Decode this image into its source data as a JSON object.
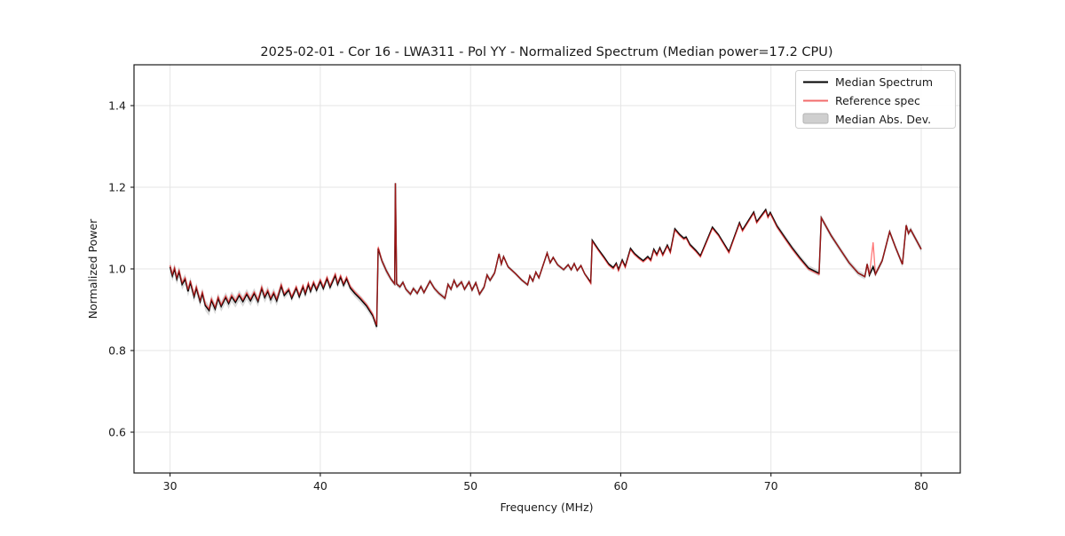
{
  "colors": {
    "median_line": "#000000",
    "reference_line": "#ff2222",
    "reference_opacity": 0.62,
    "mad_band": "#b9b9b9",
    "mad_opacity": 0.55,
    "grid": "#e5e5e5",
    "frame": "#1a1a1a",
    "legend_border": "#d0d0d0",
    "legend_bg": "#ffffff"
  },
  "legend": {
    "items": [
      {
        "label": "Median Spectrum",
        "swatch": "line",
        "color": "#000000"
      },
      {
        "label": "Reference spec",
        "swatch": "line",
        "color": "#f26b6b"
      },
      {
        "label": "Median Abs. Dev.",
        "swatch": "patch",
        "color": "#cfcfcf",
        "border": "#b5b5b5"
      }
    ]
  },
  "chart_data": {
    "type": "line",
    "title": "2025-02-01 - Cor 16 - LWA311 - Pol YY - Normalized Spectrum (Median power=17.2 CPU)",
    "xlabel": "Frequency (MHz)",
    "ylabel": "Normalized Power",
    "xlim": [
      27.6,
      82.6
    ],
    "ylim": [
      0.5,
      1.5
    ],
    "xticks": [
      30,
      40,
      50,
      60,
      70,
      80
    ],
    "xtick_labels": [
      "30",
      "40",
      "50",
      "60",
      "70",
      "80"
    ],
    "yticks": [
      0.6,
      0.8,
      1.0,
      1.2,
      1.4
    ],
    "ytick_labels": [
      "0.6",
      "0.8",
      "1.0",
      "1.2",
      "1.4"
    ],
    "grid": true,
    "legend_position": "upper right",
    "series_names": [
      "Median Spectrum",
      "Reference spec",
      "Median Abs. Dev."
    ],
    "points": [
      [
        30.0,
        1.005
      ],
      [
        30.15,
        0.983
      ],
      [
        30.3,
        1.0
      ],
      [
        30.45,
        0.975
      ],
      [
        30.6,
        0.993
      ],
      [
        30.8,
        0.962
      ],
      [
        31.0,
        0.975
      ],
      [
        31.2,
        0.945
      ],
      [
        31.35,
        0.967
      ],
      [
        31.6,
        0.932
      ],
      [
        31.75,
        0.953
      ],
      [
        32.0,
        0.92
      ],
      [
        32.15,
        0.94
      ],
      [
        32.35,
        0.91
      ],
      [
        32.6,
        0.898
      ],
      [
        32.75,
        0.923
      ],
      [
        33.0,
        0.902
      ],
      [
        33.2,
        0.928
      ],
      [
        33.4,
        0.908
      ],
      [
        33.7,
        0.93
      ],
      [
        33.9,
        0.915
      ],
      [
        34.1,
        0.932
      ],
      [
        34.35,
        0.918
      ],
      [
        34.6,
        0.935
      ],
      [
        34.85,
        0.92
      ],
      [
        35.1,
        0.938
      ],
      [
        35.35,
        0.922
      ],
      [
        35.6,
        0.94
      ],
      [
        35.85,
        0.92
      ],
      [
        36.1,
        0.952
      ],
      [
        36.3,
        0.93
      ],
      [
        36.5,
        0.945
      ],
      [
        36.7,
        0.925
      ],
      [
        36.9,
        0.94
      ],
      [
        37.1,
        0.922
      ],
      [
        37.4,
        0.958
      ],
      [
        37.6,
        0.935
      ],
      [
        37.9,
        0.948
      ],
      [
        38.1,
        0.928
      ],
      [
        38.4,
        0.953
      ],
      [
        38.6,
        0.932
      ],
      [
        38.85,
        0.956
      ],
      [
        39.0,
        0.938
      ],
      [
        39.2,
        0.962
      ],
      [
        39.35,
        0.945
      ],
      [
        39.55,
        0.965
      ],
      [
        39.75,
        0.948
      ],
      [
        40.0,
        0.97
      ],
      [
        40.2,
        0.952
      ],
      [
        40.45,
        0.976
      ],
      [
        40.65,
        0.955
      ],
      [
        41.0,
        0.984
      ],
      [
        41.15,
        0.962
      ],
      [
        41.35,
        0.98
      ],
      [
        41.55,
        0.96
      ],
      [
        41.75,
        0.976
      ],
      [
        42.0,
        0.953
      ],
      [
        42.3,
        0.94
      ],
      [
        42.7,
        0.925
      ],
      [
        43.1,
        0.908
      ],
      [
        43.5,
        0.885
      ],
      [
        43.75,
        0.858
      ],
      [
        43.85,
        1.05
      ],
      [
        44.1,
        1.02
      ],
      [
        44.4,
        0.995
      ],
      [
        44.7,
        0.975
      ],
      [
        44.95,
        0.963
      ],
      [
        45.0,
        1.21
      ],
      [
        45.08,
        0.963
      ],
      [
        45.3,
        0.956
      ],
      [
        45.5,
        0.967
      ],
      [
        45.7,
        0.95
      ],
      [
        46.0,
        0.938
      ],
      [
        46.2,
        0.952
      ],
      [
        46.45,
        0.94
      ],
      [
        46.7,
        0.957
      ],
      [
        46.9,
        0.942
      ],
      [
        47.3,
        0.97
      ],
      [
        47.6,
        0.952
      ],
      [
        47.9,
        0.94
      ],
      [
        48.3,
        0.928
      ],
      [
        48.5,
        0.962
      ],
      [
        48.7,
        0.95
      ],
      [
        48.9,
        0.972
      ],
      [
        49.1,
        0.956
      ],
      [
        49.4,
        0.968
      ],
      [
        49.6,
        0.95
      ],
      [
        49.9,
        0.968
      ],
      [
        50.1,
        0.948
      ],
      [
        50.35,
        0.966
      ],
      [
        50.6,
        0.938
      ],
      [
        50.9,
        0.955
      ],
      [
        51.1,
        0.985
      ],
      [
        51.3,
        0.972
      ],
      [
        51.6,
        0.99
      ],
      [
        51.9,
        1.037
      ],
      [
        52.05,
        1.012
      ],
      [
        52.2,
        1.03
      ],
      [
        52.5,
        1.005
      ],
      [
        53.0,
        0.988
      ],
      [
        53.4,
        0.973
      ],
      [
        53.8,
        0.961
      ],
      [
        53.95,
        0.983
      ],
      [
        54.15,
        0.97
      ],
      [
        54.35,
        0.992
      ],
      [
        54.55,
        0.978
      ],
      [
        55.1,
        1.039
      ],
      [
        55.3,
        1.015
      ],
      [
        55.5,
        1.028
      ],
      [
        55.8,
        1.01
      ],
      [
        56.2,
        0.998
      ],
      [
        56.5,
        1.01
      ],
      [
        56.7,
        0.998
      ],
      [
        56.9,
        1.013
      ],
      [
        57.1,
        0.996
      ],
      [
        57.35,
        1.008
      ],
      [
        57.6,
        0.988
      ],
      [
        58.0,
        0.967
      ],
      [
        58.1,
        1.07
      ],
      [
        58.5,
        1.048
      ],
      [
        58.9,
        1.028
      ],
      [
        59.2,
        1.012
      ],
      [
        59.5,
        1.003
      ],
      [
        59.7,
        1.014
      ],
      [
        59.85,
        0.998
      ],
      [
        60.1,
        1.022
      ],
      [
        60.3,
        1.006
      ],
      [
        60.65,
        1.05
      ],
      [
        60.9,
        1.038
      ],
      [
        61.2,
        1.028
      ],
      [
        61.5,
        1.02
      ],
      [
        61.8,
        1.03
      ],
      [
        62.0,
        1.022
      ],
      [
        62.2,
        1.048
      ],
      [
        62.4,
        1.035
      ],
      [
        62.6,
        1.052
      ],
      [
        62.8,
        1.035
      ],
      [
        63.1,
        1.058
      ],
      [
        63.3,
        1.042
      ],
      [
        63.6,
        1.098
      ],
      [
        63.9,
        1.085
      ],
      [
        64.2,
        1.075
      ],
      [
        64.35,
        1.078
      ],
      [
        64.6,
        1.06
      ],
      [
        65.0,
        1.045
      ],
      [
        65.3,
        1.032
      ],
      [
        66.1,
        1.102
      ],
      [
        66.5,
        1.084
      ],
      [
        67.2,
        1.042
      ],
      [
        67.9,
        1.113
      ],
      [
        68.1,
        1.095
      ],
      [
        68.85,
        1.139
      ],
      [
        69.05,
        1.115
      ],
      [
        69.65,
        1.145
      ],
      [
        69.8,
        1.128
      ],
      [
        69.95,
        1.138
      ],
      [
        70.4,
        1.105
      ],
      [
        70.9,
        1.078
      ],
      [
        71.4,
        1.052
      ],
      [
        71.9,
        1.028
      ],
      [
        72.5,
        1.002
      ],
      [
        73.2,
        0.989
      ],
      [
        73.35,
        1.125
      ],
      [
        74.0,
        1.082
      ],
      [
        74.6,
        1.048
      ],
      [
        75.2,
        1.015
      ],
      [
        75.8,
        0.99
      ],
      [
        76.25,
        0.981
      ],
      [
        76.4,
        1.012
      ],
      [
        76.55,
        0.985
      ],
      [
        76.8,
        1.005
      ],
      [
        76.95,
        0.987
      ],
      [
        77.4,
        1.02
      ],
      [
        77.9,
        1.091
      ],
      [
        78.3,
        1.052
      ],
      [
        78.75,
        1.011
      ],
      [
        79.0,
        1.107
      ],
      [
        79.15,
        1.087
      ],
      [
        79.3,
        1.096
      ],
      [
        80.0,
        1.048
      ]
    ],
    "reference_overrides": {
      "76.8": 1.065
    },
    "reference_offsets": [
      {
        "from": 29.0,
        "to": 44.0,
        "dy": 0.004
      },
      {
        "from": 58.0,
        "to": 73.3,
        "dy": -0.003
      }
    ],
    "mad_halfwidth_segments": [
      {
        "from": 29.5,
        "to": 37.5,
        "hw": 0.013
      },
      {
        "from": 37.5,
        "to": 44.5,
        "hw": 0.009
      },
      {
        "from": 44.5,
        "to": 52.0,
        "hw": 0.006
      },
      {
        "from": 52.0,
        "to": 70.0,
        "hw": 0.0045
      },
      {
        "from": 70.0,
        "to": 80.5,
        "hw": 0.007
      }
    ]
  }
}
